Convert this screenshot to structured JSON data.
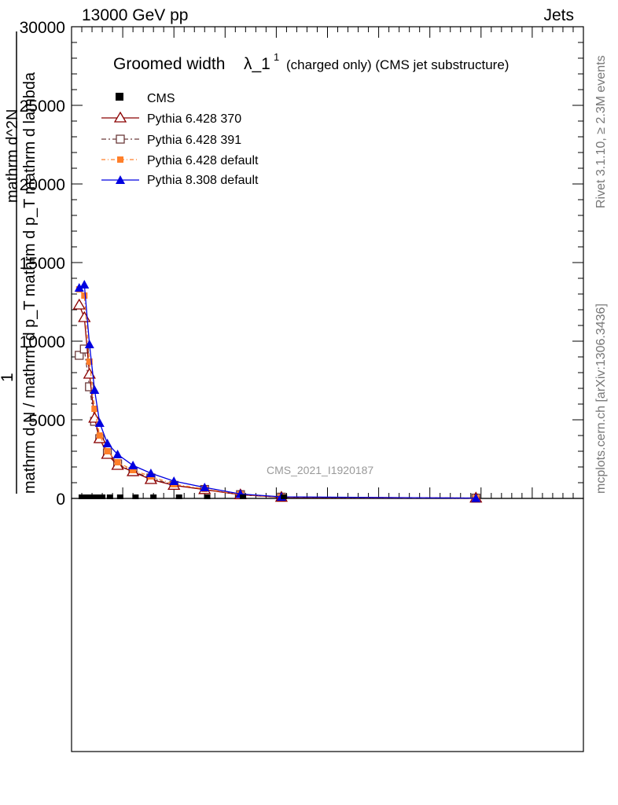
{
  "header": {
    "left": "13000 GeV pp",
    "right": "Jets"
  },
  "side_labels": {
    "rivet": "Rivet 3.1.10, ≥ 2.3M events",
    "mcplots": "mcplots.cern.ch [arXiv:1306.3436]"
  },
  "colors": {
    "cms": "#000000",
    "py6_370": "#8b0000",
    "py6_391": "#6b3a3a",
    "py6_default": "#ff7f2a",
    "py8_default": "#0000e0"
  },
  "chart_data": {
    "type": "line",
    "title": "Groomed width λ_1^1 (charged only) (CMS jet substructure)",
    "title_main": "Groomed width",
    "title_symbol": "λ_1",
    "title_sup": "1",
    "title_rest": "(charged only) (CMS jet substructure)",
    "ylabel_numerator": "1",
    "ylabel_denominator": "mathrm d N / mathrm d p_T mathrm d p_T mathrm d lambda",
    "ylabel_top_fragment": "mathrm d^2N",
    "analysis_label": "CMS_2021_I1920187",
    "ylim": [
      0,
      30000
    ],
    "xlim": [
      0,
      1
    ],
    "grid": false,
    "legend_position": "top-left",
    "y_tick_labels": [
      "0",
      "5000",
      "10000",
      "15000",
      "20000",
      "25000",
      "30000"
    ],
    "x_tick_labels": [],
    "series": [
      {
        "name": "CMS",
        "marker": "filled-square",
        "x": [
          0.02,
          0.03,
          0.04,
          0.05,
          0.06,
          0.075,
          0.095,
          0.125,
          0.16,
          0.21,
          0.265,
          0.335,
          0.415
        ],
        "y": [
          0,
          0,
          0,
          0,
          0,
          0,
          0,
          0,
          0,
          0,
          0,
          0,
          0
        ]
      },
      {
        "name": "Pythia 6.428 370",
        "marker": "open-triangle",
        "x": [
          0.015,
          0.025,
          0.035,
          0.045,
          0.055,
          0.07,
          0.09,
          0.12,
          0.155,
          0.2,
          0.26,
          0.33,
          0.41,
          0.79
        ],
        "y": [
          12300,
          11500,
          7900,
          5100,
          3800,
          2800,
          2100,
          1700,
          1200,
          830,
          560,
          230,
          70,
          20
        ]
      },
      {
        "name": "Pythia 6.428 391",
        "marker": "open-square",
        "x": [
          0.015,
          0.025,
          0.035,
          0.045,
          0.055,
          0.07,
          0.09,
          0.12,
          0.155,
          0.2,
          0.26,
          0.33,
          0.41,
          0.79
        ],
        "y": [
          9100,
          9500,
          7100,
          4900,
          3800,
          2900,
          2200,
          1700,
          1300,
          830,
          570,
          240,
          80,
          20
        ]
      },
      {
        "name": "Pythia 6.428 default",
        "marker": "filled-square-small",
        "x": [
          0.015,
          0.025,
          0.035,
          0.045,
          0.055,
          0.07,
          0.09,
          0.12,
          0.155,
          0.2,
          0.26,
          0.33,
          0.41,
          0.79
        ],
        "y": [
          13300,
          12900,
          8700,
          5700,
          4000,
          3000,
          2300,
          1800,
          1400,
          900,
          600,
          250,
          90,
          20
        ]
      },
      {
        "name": "Pythia 8.308 default",
        "marker": "filled-triangle",
        "x": [
          0.015,
          0.025,
          0.035,
          0.045,
          0.055,
          0.07,
          0.09,
          0.12,
          0.155,
          0.2,
          0.26,
          0.33,
          0.41,
          0.79
        ],
        "y": [
          13400,
          13600,
          9800,
          6900,
          4800,
          3500,
          2800,
          2100,
          1600,
          1100,
          700,
          280,
          100,
          20
        ]
      }
    ]
  }
}
